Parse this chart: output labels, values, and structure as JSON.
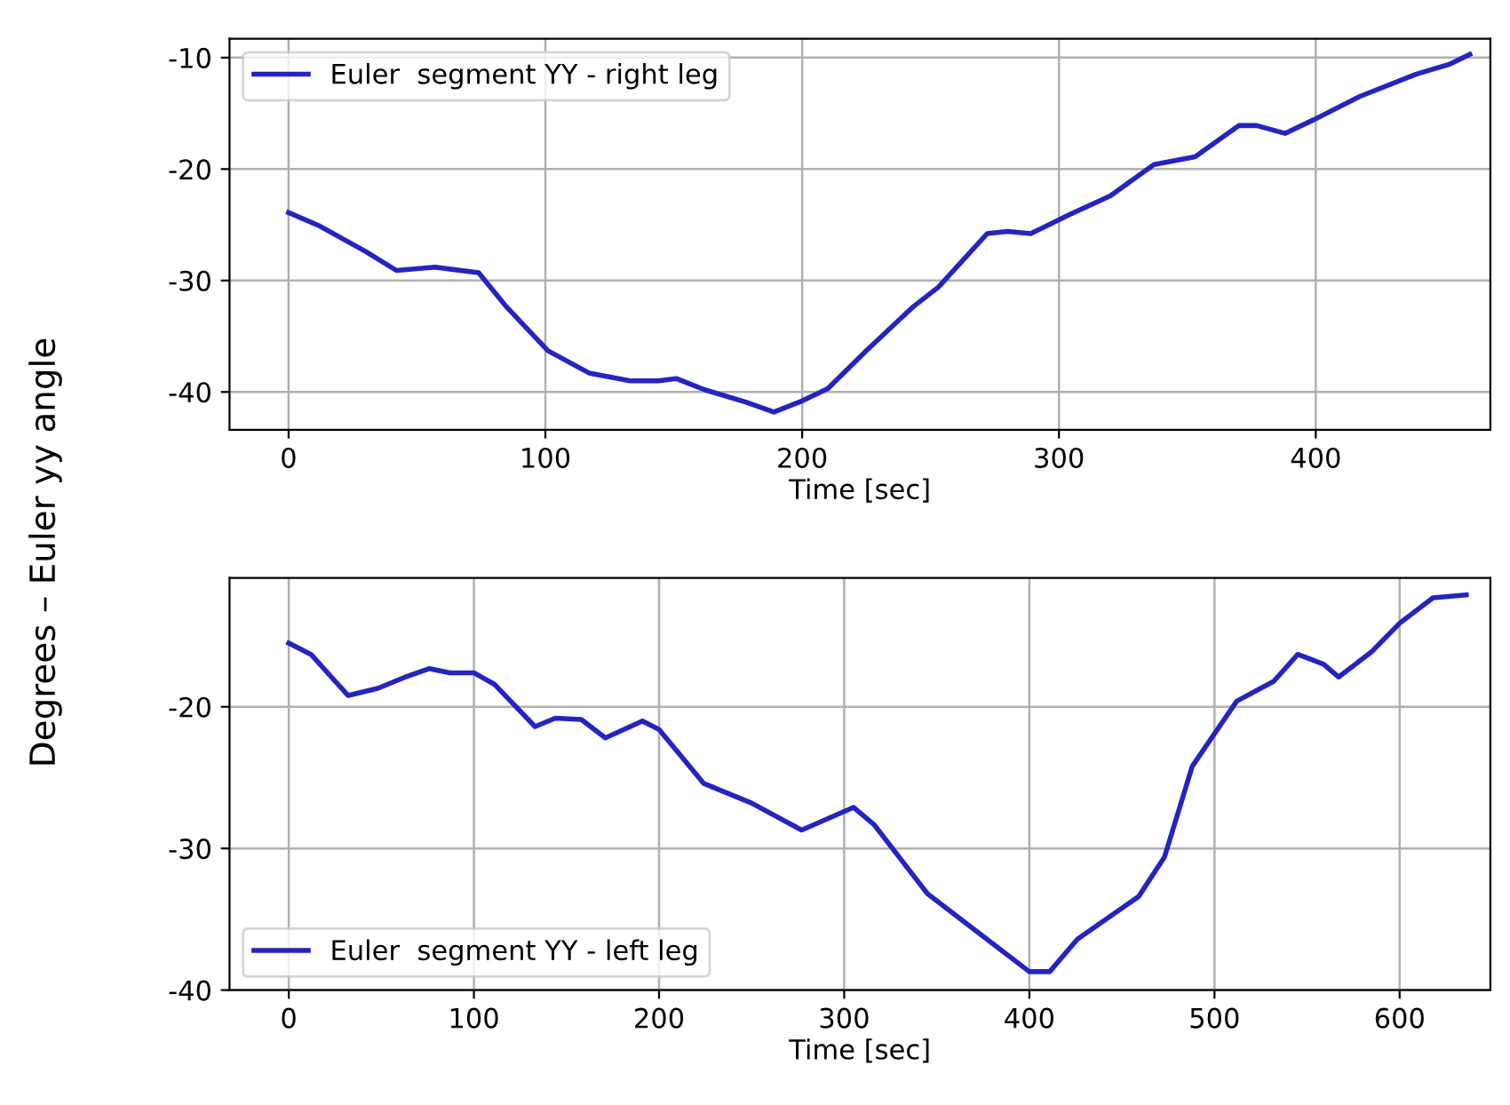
{
  "chart_data": [
    {
      "type": "line",
      "ylabel": "Degrees – Euler yy angle",
      "xlabel": "Time [sec]",
      "xlim": [
        -23,
        468
      ],
      "ylim": [
        -43.4,
        -8.3
      ],
      "xticks": [
        0,
        100,
        200,
        300,
        400
      ],
      "yticks": [
        -40,
        -30,
        -20,
        -10
      ],
      "grid": true,
      "legend": "top left",
      "series": [
        {
          "name": "Euler  segment YY - right leg",
          "color": "#2424c0",
          "x": [
            0,
            12,
            30,
            42,
            57,
            74,
            85,
            101,
            117,
            133,
            144,
            151,
            162,
            178,
            189,
            200,
            210,
            225,
            243,
            253,
            272,
            280,
            289,
            304,
            320,
            337,
            353,
            370,
            377,
            388,
            399,
            417,
            439,
            452,
            460
          ],
          "values": [
            -23.9,
            -25.1,
            -27.4,
            -29.1,
            -28.8,
            -29.3,
            -32.4,
            -36.3,
            -38.3,
            -39.0,
            -39.0,
            -38.8,
            -39.8,
            -40.9,
            -41.8,
            -40.8,
            -39.7,
            -36.3,
            -32.4,
            -30.6,
            -25.8,
            -25.6,
            -25.8,
            -24.1,
            -22.4,
            -19.6,
            -18.9,
            -16.1,
            -16.1,
            -16.8,
            -15.6,
            -13.5,
            -11.5,
            -10.6,
            -9.7
          ]
        }
      ]
    },
    {
      "type": "line",
      "xlabel": "Time [sec]",
      "xlim": [
        -32,
        649
      ],
      "ylim": [
        -40,
        -10.9
      ],
      "xticks": [
        0,
        100,
        200,
        300,
        400,
        500,
        600
      ],
      "yticks": [
        -40,
        -30,
        -20
      ],
      "grid": true,
      "legend": "bottom left",
      "series": [
        {
          "name": "Euler  segment YY - left leg",
          "color": "#2424c0",
          "x": [
            0,
            12,
            32,
            48,
            63,
            76,
            87,
            100,
            111,
            133,
            144,
            158,
            171,
            191,
            200,
            224,
            250,
            277,
            305,
            316,
            345,
            374,
            400,
            411,
            426,
            459,
            473,
            488,
            512,
            532,
            545,
            559,
            567,
            585,
            600,
            618,
            636
          ],
          "values": [
            -15.5,
            -16.3,
            -19.2,
            -18.7,
            -17.9,
            -17.3,
            -17.6,
            -17.6,
            -18.4,
            -21.4,
            -20.8,
            -20.9,
            -22.2,
            -21.0,
            -21.6,
            -25.4,
            -26.8,
            -28.7,
            -27.1,
            -28.3,
            -33.2,
            -36.1,
            -38.7,
            -38.7,
            -36.4,
            -33.4,
            -30.6,
            -24.2,
            -19.6,
            -18.2,
            -16.3,
            -17.0,
            -17.9,
            -16.1,
            -14.1,
            -12.3,
            -12.1
          ]
        }
      ]
    }
  ]
}
